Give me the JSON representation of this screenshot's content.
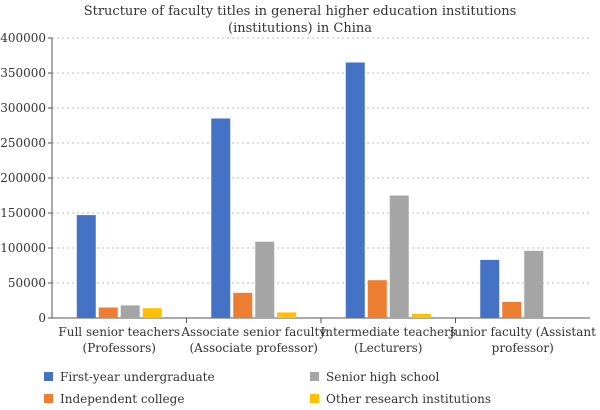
{
  "chart_data": {
    "type": "bar",
    "title_lines": [
      "Structure of faculty titles in general higher education institutions",
      "(institutions) in China"
    ],
    "categories": [
      [
        "Full senior teachers",
        "(Professors)"
      ],
      [
        "Associate senior faculty",
        "(Associate professor)"
      ],
      [
        "Intermediate teachers",
        "(Lecturers)"
      ],
      [
        "Junior faculty (Assistant",
        "professor)"
      ]
    ],
    "series": [
      {
        "name": "First-year undergraduate",
        "color": "#4472C4",
        "values": [
          147000,
          285000,
          365000,
          83000
        ]
      },
      {
        "name": "Independent college",
        "color": "#ED7D31",
        "values": [
          15000,
          36000,
          54000,
          23000
        ]
      },
      {
        "name": "Senior high school",
        "color": "#A5A5A5",
        "values": [
          18000,
          109000,
          175000,
          96000
        ]
      },
      {
        "name": "Other research institutions",
        "color": "#FFC000",
        "values": [
          14000,
          8000,
          6000,
          0
        ]
      }
    ],
    "ylim": [
      0,
      400000
    ],
    "yticks": [
      "0",
      "50000",
      "100000",
      "150000",
      "200000",
      "250000",
      "300000",
      "350000",
      "400000"
    ],
    "grid": true,
    "grid_style": "dotted",
    "legend_position": "bottom"
  }
}
